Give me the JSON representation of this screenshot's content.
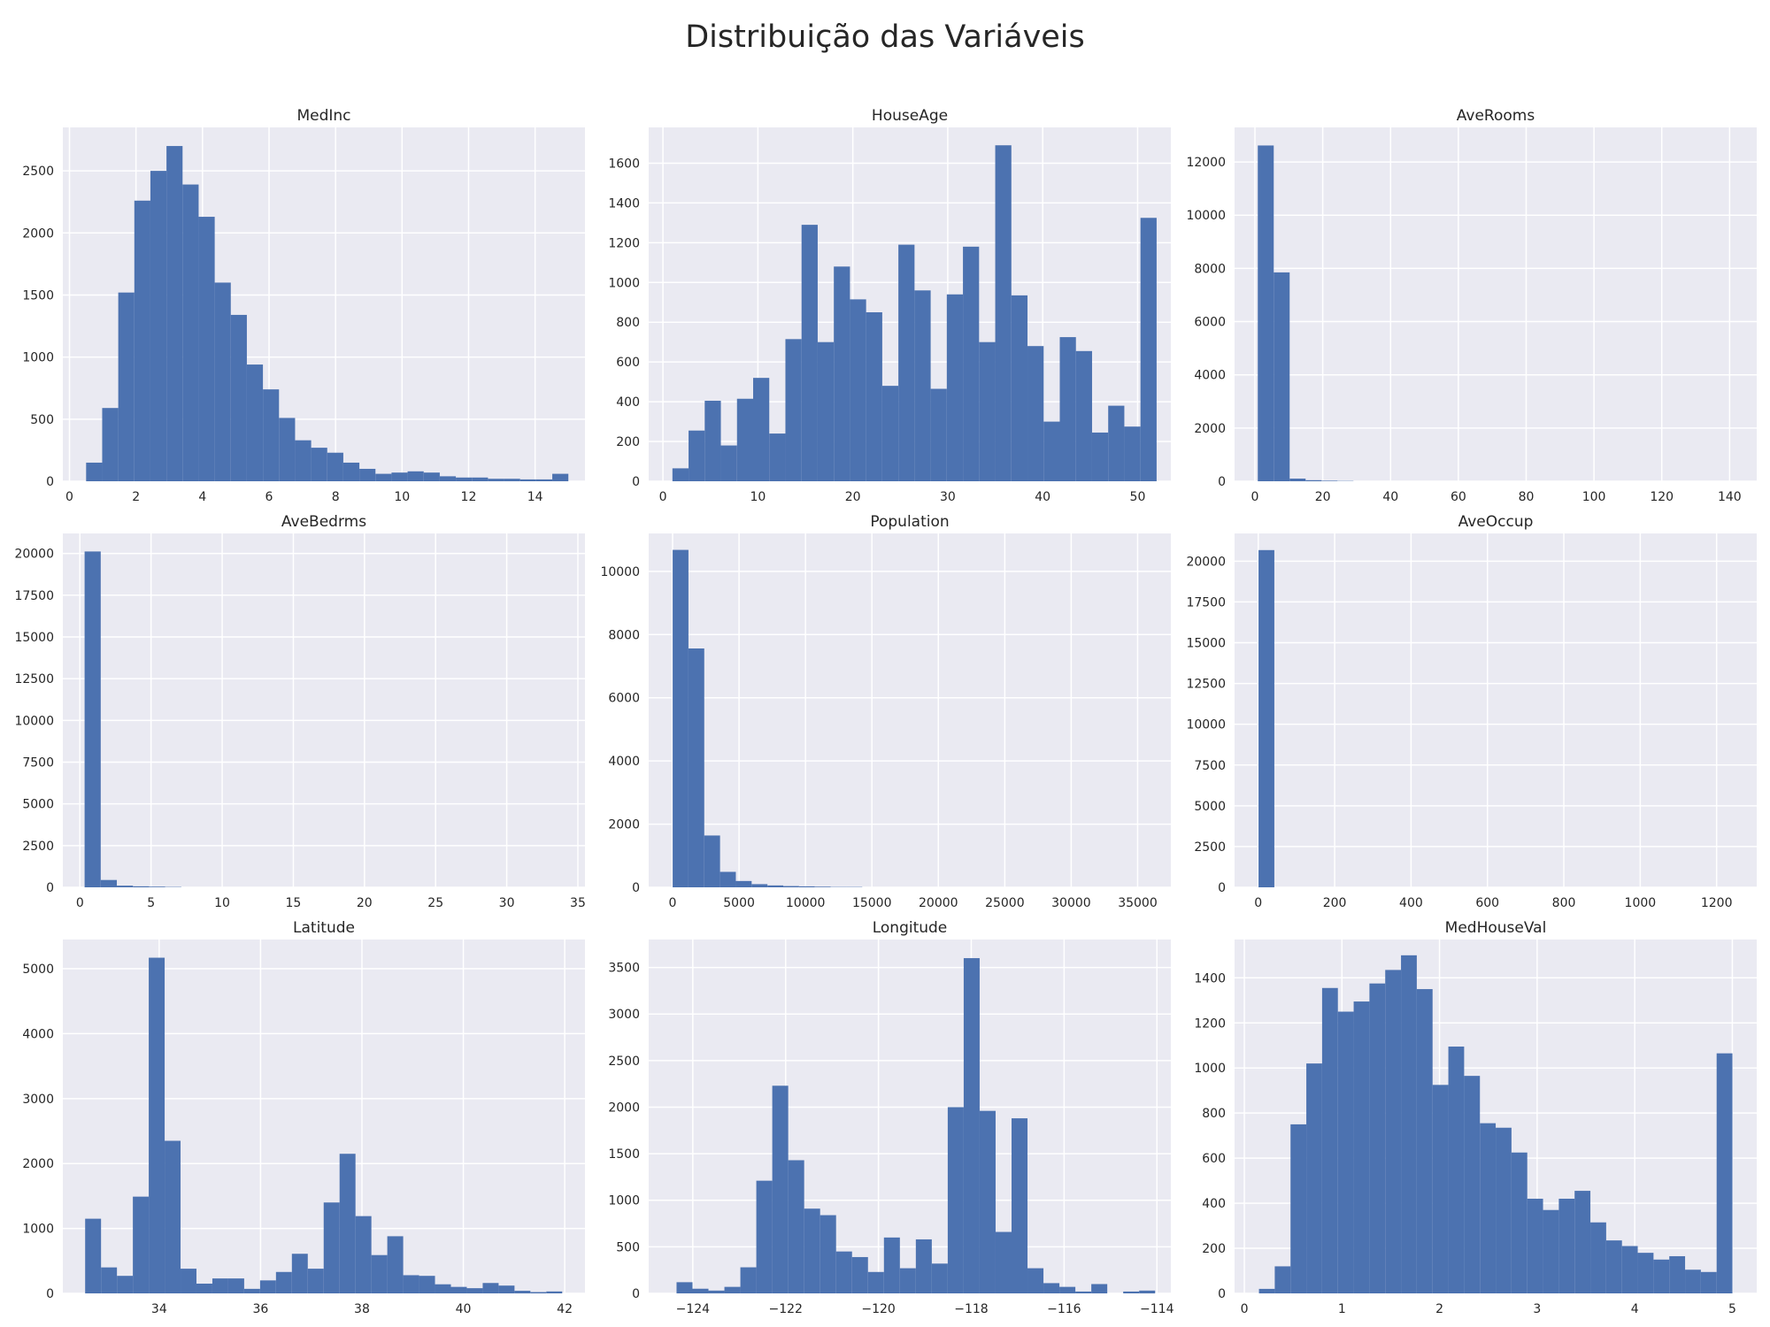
{
  "figure": {
    "suptitle": "Distribuição das Variáveis"
  },
  "colors": {
    "bar": "#4c72b0",
    "plot_background": "#eaeaf2",
    "grid": "#ffffff"
  },
  "chart_data": [
    {
      "type": "bar",
      "title": "MedInc",
      "grid": true,
      "xlim": [
        -0.2,
        15.5
      ],
      "ylim": [
        0,
        2850
      ],
      "bin_start": 0.4999,
      "bin_width": 0.48334,
      "values": [
        150,
        590,
        1520,
        2260,
        2500,
        2700,
        2390,
        2130,
        1600,
        1340,
        940,
        740,
        510,
        330,
        270,
        230,
        150,
        100,
        60,
        70,
        80,
        70,
        40,
        30,
        30,
        20,
        20,
        15,
        15,
        60
      ],
      "xticks": [
        0,
        2,
        4,
        6,
        8,
        10,
        12,
        14
      ],
      "yticks": [
        0,
        500,
        1000,
        1500,
        2000,
        2500
      ]
    },
    {
      "type": "bar",
      "title": "HouseAge",
      "grid": true,
      "xlim": [
        -1.5,
        53.5
      ],
      "ylim": [
        0,
        1780
      ],
      "bin_start": 1,
      "bin_width": 1.7,
      "values": [
        65,
        255,
        405,
        180,
        415,
        520,
        240,
        715,
        1290,
        700,
        1080,
        915,
        850,
        480,
        1190,
        960,
        465,
        940,
        1180,
        700,
        1690,
        935,
        680,
        300,
        725,
        655,
        245,
        380,
        275,
        1325
      ],
      "xticks": [
        0,
        10,
        20,
        30,
        40,
        50
      ],
      "yticks": [
        0,
        200,
        400,
        600,
        800,
        1000,
        1200,
        1400,
        1600
      ]
    },
    {
      "type": "bar",
      "title": "AveRooms",
      "grid": true,
      "xlim": [
        -6,
        148
      ],
      "ylim": [
        0,
        13300
      ],
      "bin_start": 0.85,
      "bin_width": 4.7,
      "values": [
        12620,
        7850,
        100,
        40,
        20,
        10,
        0,
        0,
        0,
        0,
        0,
        0,
        0,
        0,
        0,
        0,
        0,
        0,
        0,
        0,
        0,
        0,
        0,
        0,
        0,
        0,
        0,
        0,
        0,
        0
      ],
      "xticks": [
        0,
        20,
        40,
        60,
        80,
        100,
        120,
        140
      ],
      "yticks": [
        0,
        2000,
        4000,
        6000,
        8000,
        10000,
        12000
      ]
    },
    {
      "type": "bar",
      "title": "AveBedrms",
      "grid": true,
      "xlim": [
        -1.2,
        35.5
      ],
      "ylim": [
        0,
        21200
      ],
      "bin_start": 0.33,
      "bin_width": 1.133,
      "values": [
        20120,
        440,
        100,
        60,
        40,
        20,
        0,
        0,
        0,
        0,
        0,
        0,
        0,
        0,
        0,
        0,
        0,
        0,
        0,
        0,
        0,
        0,
        0,
        0,
        0,
        0,
        0,
        0,
        0,
        0
      ],
      "xticks": [
        0,
        5,
        10,
        15,
        20,
        25,
        30,
        35
      ],
      "yticks": [
        0,
        2500,
        5000,
        7500,
        10000,
        12500,
        15000,
        17500,
        20000
      ]
    },
    {
      "type": "bar",
      "title": "Population",
      "grid": true,
      "xlim": [
        -1800,
        37500
      ],
      "ylim": [
        0,
        11200
      ],
      "bin_start": 3,
      "bin_width": 1189,
      "values": [
        10680,
        7560,
        1640,
        490,
        200,
        100,
        60,
        40,
        30,
        20,
        10,
        10,
        0,
        0,
        0,
        0,
        0,
        0,
        0,
        0,
        0,
        0,
        0,
        0,
        0,
        0,
        0,
        0,
        0,
        0
      ],
      "xticks": [
        0,
        5000,
        10000,
        15000,
        20000,
        25000,
        30000,
        35000
      ],
      "yticks": [
        0,
        2000,
        4000,
        6000,
        8000,
        10000
      ]
    },
    {
      "type": "bar",
      "title": "AveOccup",
      "grid": true,
      "xlim": [
        -62,
        1305
      ],
      "ylim": [
        0,
        21700
      ],
      "bin_start": 0.69,
      "bin_width": 41.42,
      "values": [
        20680,
        0,
        0,
        0,
        0,
        0,
        0,
        0,
        0,
        0,
        0,
        0,
        0,
        0,
        0,
        0,
        0,
        0,
        0,
        0,
        0,
        0,
        0,
        0,
        0,
        0,
        0,
        0,
        0,
        0
      ],
      "xticks": [
        0,
        200,
        400,
        600,
        800,
        1000,
        1200
      ],
      "yticks": [
        0,
        2500,
        5000,
        7500,
        10000,
        12500,
        15000,
        17500,
        20000
      ]
    },
    {
      "type": "bar",
      "title": "Latitude",
      "grid": true,
      "xlim": [
        32.1,
        42.4
      ],
      "ylim": [
        0,
        5450
      ],
      "bin_start": 32.54,
      "bin_width": 0.3137,
      "values": [
        1150,
        400,
        270,
        1490,
        5170,
        2350,
        380,
        150,
        230,
        230,
        70,
        200,
        330,
        610,
        380,
        1400,
        2150,
        1190,
        590,
        880,
        280,
        270,
        140,
        100,
        80,
        160,
        120,
        40,
        20,
        30
      ],
      "xticks": [
        34,
        36,
        38,
        40,
        42
      ],
      "yticks": [
        0,
        1000,
        2000,
        3000,
        4000,
        5000
      ]
    },
    {
      "type": "bar",
      "title": "Longitude",
      "grid": true,
      "xlim": [
        -124.95,
        -113.7
      ],
      "ylim": [
        0,
        3800
      ],
      "bin_start": -124.35,
      "bin_width": 0.3437,
      "values": [
        120,
        50,
        30,
        70,
        280,
        1210,
        2230,
        1430,
        910,
        840,
        450,
        390,
        230,
        600,
        270,
        580,
        320,
        2000,
        3600,
        1960,
        660,
        1880,
        270,
        110,
        70,
        20,
        100,
        0,
        20,
        30
      ],
      "xticks": [
        -124,
        -122,
        -120,
        -118,
        -116,
        -114
      ],
      "yticks": [
        0,
        500,
        1000,
        1500,
        2000,
        2500,
        3000,
        3500
      ]
    },
    {
      "type": "bar",
      "title": "MedHouseVal",
      "grid": true,
      "xlim": [
        -0.1,
        5.25
      ],
      "ylim": [
        0,
        1570
      ],
      "bin_start": 0.15,
      "bin_width": 0.1617,
      "values": [
        20,
        120,
        750,
        1020,
        1355,
        1250,
        1295,
        1375,
        1435,
        1500,
        1350,
        925,
        1095,
        965,
        755,
        735,
        625,
        420,
        370,
        420,
        455,
        315,
        235,
        210,
        180,
        150,
        165,
        105,
        95,
        1065
      ],
      "xticks": [
        0,
        1,
        2,
        3,
        4,
        5
      ],
      "yticks": [
        0,
        200,
        400,
        600,
        800,
        1000,
        1200,
        1400
      ]
    }
  ]
}
